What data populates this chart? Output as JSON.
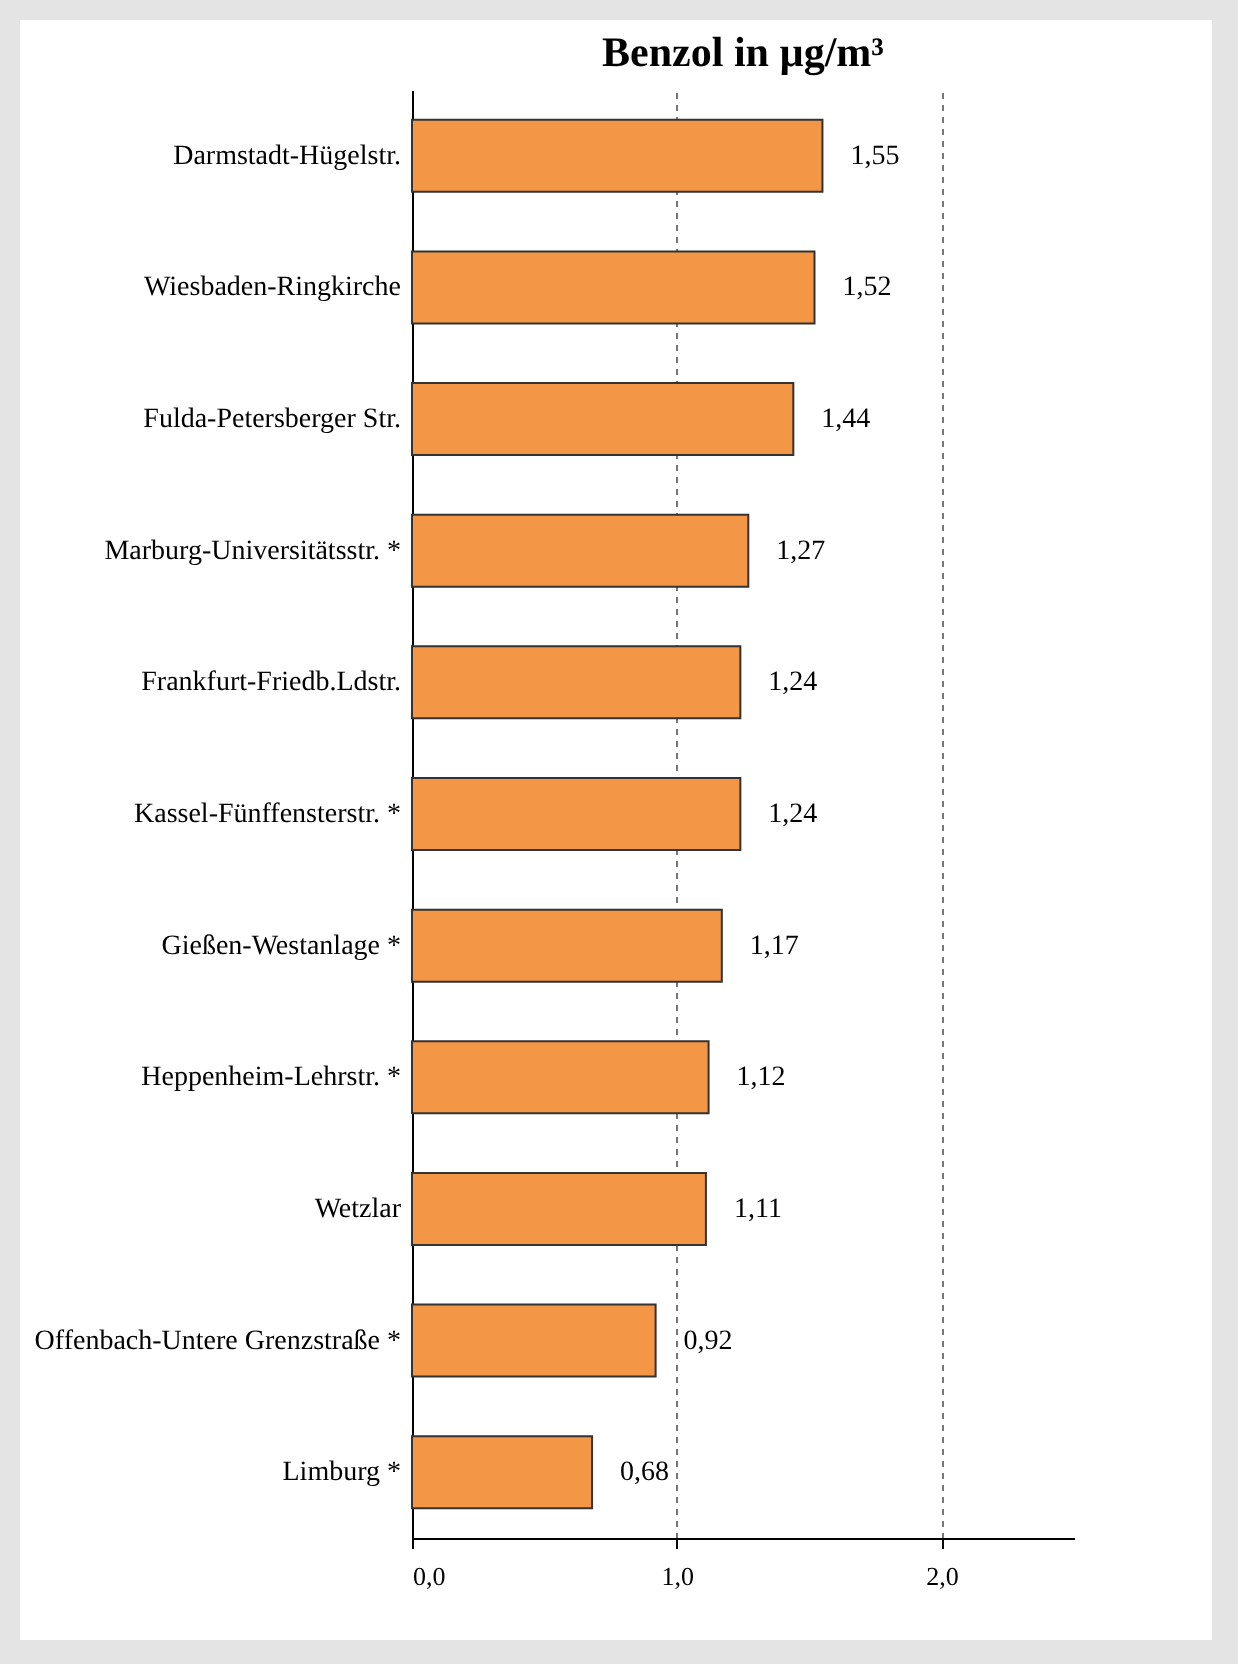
{
  "chart_data": {
    "type": "bar",
    "title": "Benzol in µg/m³",
    "orientation": "horizontal",
    "categories": [
      "Darmstadt-Hügelstr.",
      "Wiesbaden-Ringkirche",
      "Fulda-Petersberger Str.",
      "Marburg-Universitätsstr. *",
      "Frankfurt-Friedb.Ldstr.",
      "Kassel-Fünffensterstr. *",
      "Gießen-Westanlage *",
      "Heppenheim-Lehrstr. *",
      "Wetzlar",
      "Offenbach-Untere Grenzstraße *",
      "Limburg *"
    ],
    "values": [
      1.55,
      1.52,
      1.44,
      1.27,
      1.24,
      1.24,
      1.17,
      1.12,
      1.11,
      0.92,
      0.68
    ],
    "value_labels": [
      "1,55",
      "1,52",
      "1,44",
      "1,27",
      "1,24",
      "1,24",
      "1,17",
      "1,12",
      "1,11",
      "0,92",
      "0,68"
    ],
    "color": "#f39646",
    "xlim": [
      0,
      2.5
    ],
    "xticks": [
      {
        "value": 0,
        "label": "0,0"
      },
      {
        "value": 1,
        "label": "1,0"
      },
      {
        "value": 2,
        "label": "2,0"
      }
    ],
    "grid": "x"
  }
}
